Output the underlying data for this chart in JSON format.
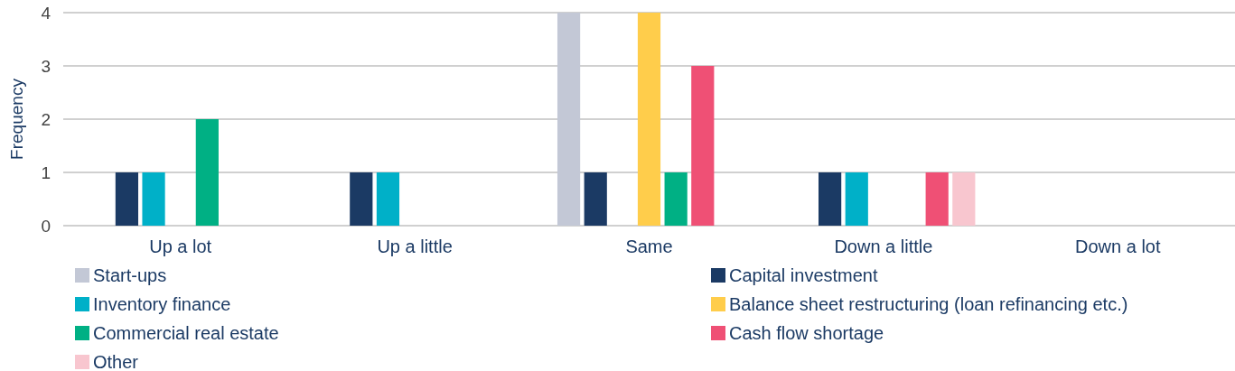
{
  "chart_data": {
    "type": "bar",
    "ylabel": "Frequency",
    "categories": [
      "Up a lot",
      "Up a little",
      "Same",
      "Down a little",
      "Down a lot"
    ],
    "series": [
      {
        "name": "Start-ups",
        "color": "#c3c8d6",
        "values": [
          0,
          0,
          4,
          0,
          0
        ]
      },
      {
        "name": "Capital investment",
        "color": "#1b3a64",
        "values": [
          1,
          1,
          1,
          1,
          0
        ]
      },
      {
        "name": "Inventory finance",
        "color": "#00b0c8",
        "values": [
          1,
          1,
          0,
          1,
          0
        ]
      },
      {
        "name": "Balance sheet restructuring (loan refinancing etc.)",
        "color": "#ffcd4b",
        "values": [
          0,
          0,
          4,
          0,
          0
        ]
      },
      {
        "name": "Commercial real estate",
        "color": "#00b084",
        "values": [
          2,
          0,
          1,
          0,
          0
        ]
      },
      {
        "name": "Cash flow shortage",
        "color": "#ef5075",
        "values": [
          0,
          0,
          3,
          1,
          0
        ]
      },
      {
        "name": "Other",
        "color": "#f8c6cf",
        "values": [
          0,
          0,
          0,
          1,
          0
        ]
      }
    ],
    "ylim": [
      0,
      4
    ],
    "yticks": [
      0,
      1,
      2,
      3,
      4
    ],
    "grid": "y",
    "legend": "bottom"
  }
}
